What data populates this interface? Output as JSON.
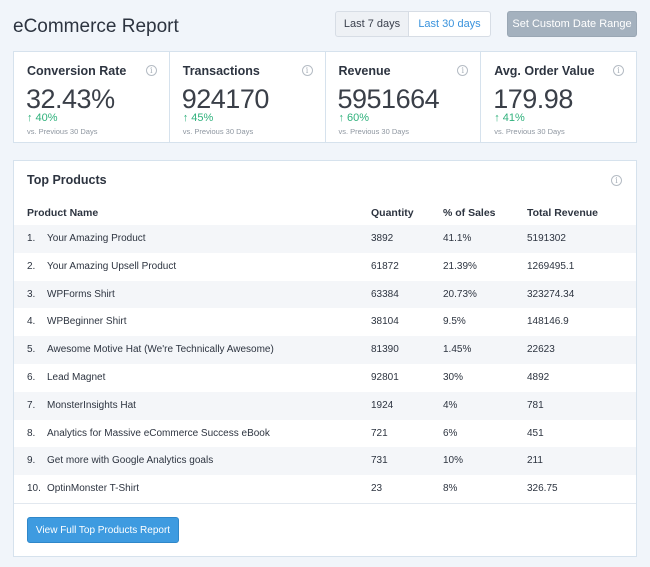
{
  "header": {
    "title": "eCommerce Report",
    "btn_7_days": "Last 7 days",
    "btn_30_days": "Last 30 days",
    "custom_range": "Set Custom Date Range"
  },
  "stats": [
    {
      "label": "Conversion Rate",
      "value": "32.43%",
      "change": "40%",
      "compare": "vs. Previous 30 Days"
    },
    {
      "label": "Transactions",
      "value": "924170",
      "change": "45%",
      "compare": "vs. Previous 30 Days"
    },
    {
      "label": "Revenue",
      "value": "5951664",
      "change": "60%",
      "compare": "vs. Previous 30 Days"
    },
    {
      "label": "Avg. Order Value",
      "value": "179.98",
      "change": "41%",
      "compare": "vs. Previous 30 Days"
    }
  ],
  "products": {
    "title": "Top Products",
    "columns": {
      "name": "Product Name",
      "quantity": "Quantity",
      "pct": "% of Sales",
      "revenue": "Total Revenue"
    },
    "rows": [
      {
        "num": "1.",
        "name": "Your Amazing Product",
        "quantity": "3892",
        "pct": "41.1%",
        "revenue": "5191302"
      },
      {
        "num": "2.",
        "name": "Your Amazing Upsell Product",
        "quantity": "61872",
        "pct": "21.39%",
        "revenue": "1269495.1"
      },
      {
        "num": "3.",
        "name": "WPForms Shirt",
        "quantity": "63384",
        "pct": "20.73%",
        "revenue": "323274.34"
      },
      {
        "num": "4.",
        "name": "WPBeginner Shirt",
        "quantity": "38104",
        "pct": "9.5%",
        "revenue": "148146.9"
      },
      {
        "num": "5.",
        "name": "Awesome Motive Hat (We're Technically Awesome)",
        "quantity": "81390",
        "pct": "1.45%",
        "revenue": "22623"
      },
      {
        "num": "6.",
        "name": "Lead Magnet",
        "quantity": "92801",
        "pct": "30%",
        "revenue": "4892"
      },
      {
        "num": "7.",
        "name": "MonsterInsights Hat",
        "quantity": "1924",
        "pct": "4%",
        "revenue": "781"
      },
      {
        "num": "8.",
        "name": "Analytics for Massive eCommerce Success eBook",
        "quantity": "721",
        "pct": "6%",
        "revenue": "451"
      },
      {
        "num": "9.",
        "name": "Get more with Google Analytics goals",
        "quantity": "731",
        "pct": "10%",
        "revenue": "211"
      },
      {
        "num": "10.",
        "name": "OptinMonster T-Shirt",
        "quantity": "23",
        "pct": "8%",
        "revenue": "326.75"
      }
    ],
    "view_full": "View Full Top Products Report"
  },
  "icons": {
    "info": "info-icon",
    "trend": "arrow-up-icon"
  },
  "colors": {
    "accent": "#3e9be0",
    "positive": "#2fb17c",
    "custom_button": "#a4b1be"
  }
}
